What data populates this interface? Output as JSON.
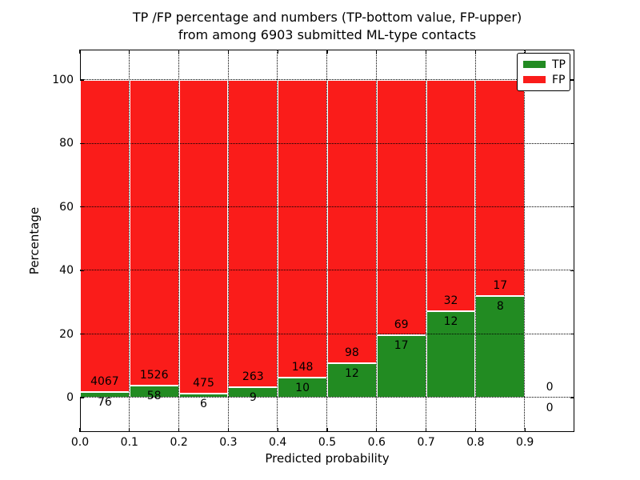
{
  "title": {
    "line1": "TP /FP percentage and numbers (TP-bottom value, FP-upper)",
    "line2": "from among 6903 submitted ML-type contacts"
  },
  "axes": {
    "xlabel": "Predicted probability",
    "ylabel": "Percentage",
    "x_tick_labels": [
      "0.0",
      "0.1",
      "0.2",
      "0.3",
      "0.4",
      "0.5",
      "0.6",
      "0.7",
      "0.8",
      "0.9"
    ],
    "y_tick_values": [
      0,
      20,
      40,
      60,
      80,
      100
    ]
  },
  "legend": {
    "position": "upper right",
    "items": [
      {
        "label": "TP",
        "color": "#228b22"
      },
      {
        "label": "FP",
        "color": "#fa1c1a"
      }
    ]
  },
  "colors": {
    "tp_green": "#228b22",
    "fp_red": "#fa1c1a",
    "frame": "#000000",
    "background": "#ffffff"
  },
  "chart_data": {
    "type": "bar",
    "stacked": true,
    "title": "TP /FP percentage and numbers (TP-bottom value, FP-upper) from among 6903 submitted ML-type contacts",
    "xlabel": "Predicted probability",
    "ylabel": "Percentage",
    "total_contacts": 6903,
    "bin_edges": [
      0.0,
      0.1,
      0.2,
      0.3,
      0.4,
      0.5,
      0.6,
      0.7,
      0.8,
      0.9,
      1.0
    ],
    "x_tick_labels": [
      "0.0",
      "0.1",
      "0.2",
      "0.3",
      "0.4",
      "0.5",
      "0.6",
      "0.7",
      "0.8",
      "0.9"
    ],
    "y_ticks": [
      0,
      20,
      40,
      60,
      80,
      100
    ],
    "ylim": [
      -11,
      110
    ],
    "grid": "dotted both axes, ticks inward on all spines",
    "legend_position": "upper right",
    "series": [
      {
        "name": "TP",
        "color": "#228b22",
        "counts": [
          76,
          58,
          6,
          9,
          10,
          12,
          17,
          12,
          8,
          0
        ]
      },
      {
        "name": "FP",
        "color": "#fa1c1a",
        "counts": [
          4067,
          1526,
          475,
          263,
          148,
          98,
          69,
          32,
          17,
          0
        ]
      }
    ],
    "tp_percent_of_bin": [
      1.8,
      3.7,
      1.2,
      3.3,
      6.3,
      10.9,
      19.8,
      27.3,
      32.0,
      0.0
    ],
    "bar_annotation_rule": "FP count printed above TP/FP boundary, TP count printed below boundary"
  }
}
